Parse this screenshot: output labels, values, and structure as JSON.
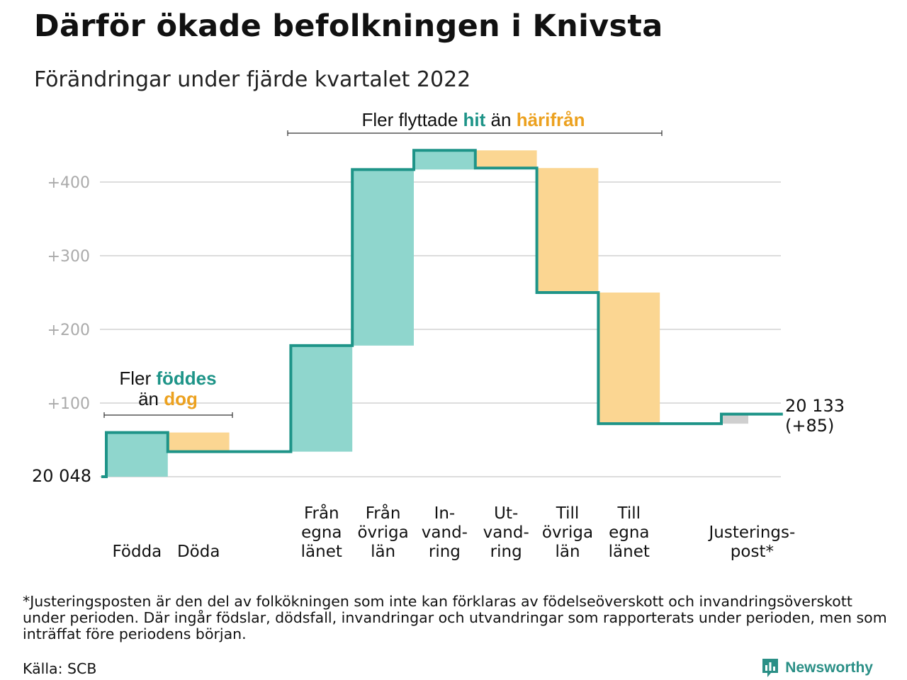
{
  "title": "Därför ökade befolkningen i Knivsta",
  "subtitle": "Förändringar under fjärde kvartalet 2022",
  "footnote": "*Justeringsposten är den del av folkökningen som inte kan förklaras av födelseöverskott och invandringsöverskott under perioden. Där ingår födslar, dödsfall, invandringar och utvandringar som rapporterats under perioden, men som inträffat före periodens början.",
  "source": "Källa: SCB",
  "brand": {
    "name": "Newsworthy",
    "icon": "newsworthy-logo-icon"
  },
  "colors": {
    "increase": "#8fd6cd",
    "decrease": "#fbd692",
    "adjustment": "#cfcfcf",
    "line": "#1e9488",
    "grid": "#dddddd",
    "hit_text": "#1e9488",
    "harifran_text": "#eca11f"
  },
  "annotations": {
    "migration": {
      "prefix": "Fler flyttade ",
      "hit": "hit",
      "middle": " än ",
      "harifran": "härifrån"
    },
    "births": {
      "line1_prefix": "Fler ",
      "line1_highlight": "föddes",
      "line2_prefix": "än ",
      "line2_highlight": "dog"
    }
  },
  "chart_data": {
    "type": "waterfall",
    "start": {
      "value": 0,
      "label": "20 048"
    },
    "end": {
      "value": 85,
      "label_line1": "20 133",
      "label_line2": "(+85)"
    },
    "yticks": [
      {
        "value": 100,
        "label": "+100"
      },
      {
        "value": 200,
        "label": "+200"
      },
      {
        "value": 300,
        "label": "+300"
      },
      {
        "value": 400,
        "label": "+400"
      }
    ],
    "ylim": [
      0,
      440
    ],
    "grid": true,
    "steps": [
      {
        "label_lines": [
          "Födda"
        ],
        "from": 0,
        "to": 60,
        "kind": "increase"
      },
      {
        "label_lines": [
          "Döda"
        ],
        "from": 60,
        "to": 34,
        "kind": "decrease"
      },
      {
        "label_lines": [],
        "from": 34,
        "to": 34,
        "kind": "none"
      },
      {
        "label_lines": [
          "Från",
          "egna",
          "länet"
        ],
        "from": 34,
        "to": 178,
        "kind": "increase"
      },
      {
        "label_lines": [
          "Från",
          "övriga",
          "län"
        ],
        "from": 178,
        "to": 417,
        "kind": "increase"
      },
      {
        "label_lines": [
          "In-",
          "vand-",
          "ring"
        ],
        "from": 417,
        "to": 443,
        "kind": "increase"
      },
      {
        "label_lines": [
          "Ut-",
          "vand-",
          "ring"
        ],
        "from": 443,
        "to": 419,
        "kind": "decrease"
      },
      {
        "label_lines": [
          "Till",
          "övriga",
          "län"
        ],
        "from": 419,
        "to": 250,
        "kind": "decrease"
      },
      {
        "label_lines": [
          "Till",
          "egna",
          "länet"
        ],
        "from": 250,
        "to": 72,
        "kind": "decrease"
      },
      {
        "label_lines": [],
        "from": 72,
        "to": 72,
        "kind": "none"
      },
      {
        "label_lines": [
          "Justerings-",
          "post*"
        ],
        "from": 72,
        "to": 85,
        "kind": "adjustment"
      }
    ]
  }
}
